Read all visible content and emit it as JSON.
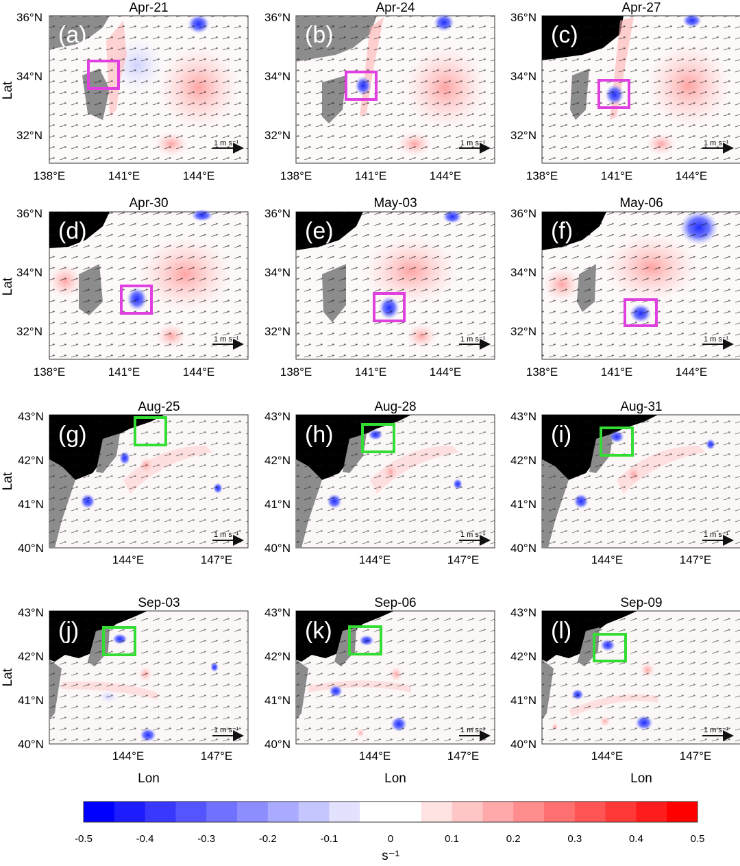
{
  "colors": {
    "land_dark": "#000000",
    "land_gray": "#8c8c8c",
    "cyclonic": "#1f2cff",
    "anticyclonic": "#ff2a2a",
    "box_magenta": "#e040e0",
    "box_green": "#33dd33",
    "arrow": "#111111"
  },
  "rows": {
    "row1": {
      "y_ticks": [
        "36°N",
        "34°N",
        "32°N"
      ],
      "x_ticks": [
        "138°E",
        "141°E",
        "144°E"
      ],
      "ylabel": "Lat",
      "panels": [
        {
          "label": "(a)",
          "date": "Apr-21",
          "scale_text": "1 m s⁻¹"
        },
        {
          "label": "(b)",
          "date": "Apr-24",
          "scale_text": "1 m s⁻¹"
        },
        {
          "label": "(c)",
          "date": "Apr-27",
          "scale_text": "1 m s⁻¹"
        }
      ]
    },
    "row2": {
      "y_ticks": [
        "36°N",
        "34°N",
        "32°N"
      ],
      "x_ticks": [
        "138°E",
        "141°E",
        "144°E"
      ],
      "ylabel": "Lat",
      "panels": [
        {
          "label": "(d)",
          "date": "Apr-30",
          "scale_text": "1 m s⁻¹"
        },
        {
          "label": "(e)",
          "date": "May-03",
          "scale_text": "1 m s⁻¹"
        },
        {
          "label": "(f)",
          "date": "May-06",
          "scale_text": "1 m s⁻¹"
        }
      ]
    },
    "row3": {
      "y_ticks": [
        "43°N",
        "42°N",
        "41°N",
        "40°N"
      ],
      "x_ticks": [
        "144°E",
        "147°E"
      ],
      "ylabel": "Lat",
      "panels": [
        {
          "label": "(g)",
          "date": "Aug-25",
          "scale_text": "1 m s⁻¹"
        },
        {
          "label": "(h)",
          "date": "Aug-28",
          "scale_text": "1 m s⁻¹"
        },
        {
          "label": "(i)",
          "date": "Aug-31",
          "scale_text": "1 m s⁻¹"
        }
      ]
    },
    "row4": {
      "y_ticks": [
        "43°N",
        "42°N",
        "41°N",
        "40°N"
      ],
      "x_ticks": [
        "144°E",
        "147°E"
      ],
      "ylabel": "Lat",
      "xlabel": "Lon",
      "panels": [
        {
          "label": "(j)",
          "date": "Sep-03",
          "scale_text": "1 m s⁻¹"
        },
        {
          "label": "(k)",
          "date": "Sep-06",
          "scale_text": "1 m s⁻¹"
        },
        {
          "label": "(l)",
          "date": "Sep-09",
          "scale_text": "1 m s⁻¹"
        }
      ]
    }
  },
  "colorbar": {
    "ticks": [
      "-0.5",
      "-0.4",
      "-0.3",
      "-0.2",
      "-0.1",
      "0",
      "0.1",
      "0.2",
      "0.3",
      "0.4",
      "0.5"
    ],
    "units": "s⁻¹",
    "bins": [
      "#0000ff",
      "#1c1cff",
      "#3838ff",
      "#5555ff",
      "#7171ff",
      "#8d8dff",
      "#aaaaff",
      "#c6c6ff",
      "#e2e2ff",
      "#ffffff",
      "#ffffff",
      "#ffe2e2",
      "#ffc6c6",
      "#ffaaaa",
      "#ff8d8d",
      "#ff7171",
      "#ff5555",
      "#ff3838",
      "#ff1c1c",
      "#ff0000"
    ]
  }
}
